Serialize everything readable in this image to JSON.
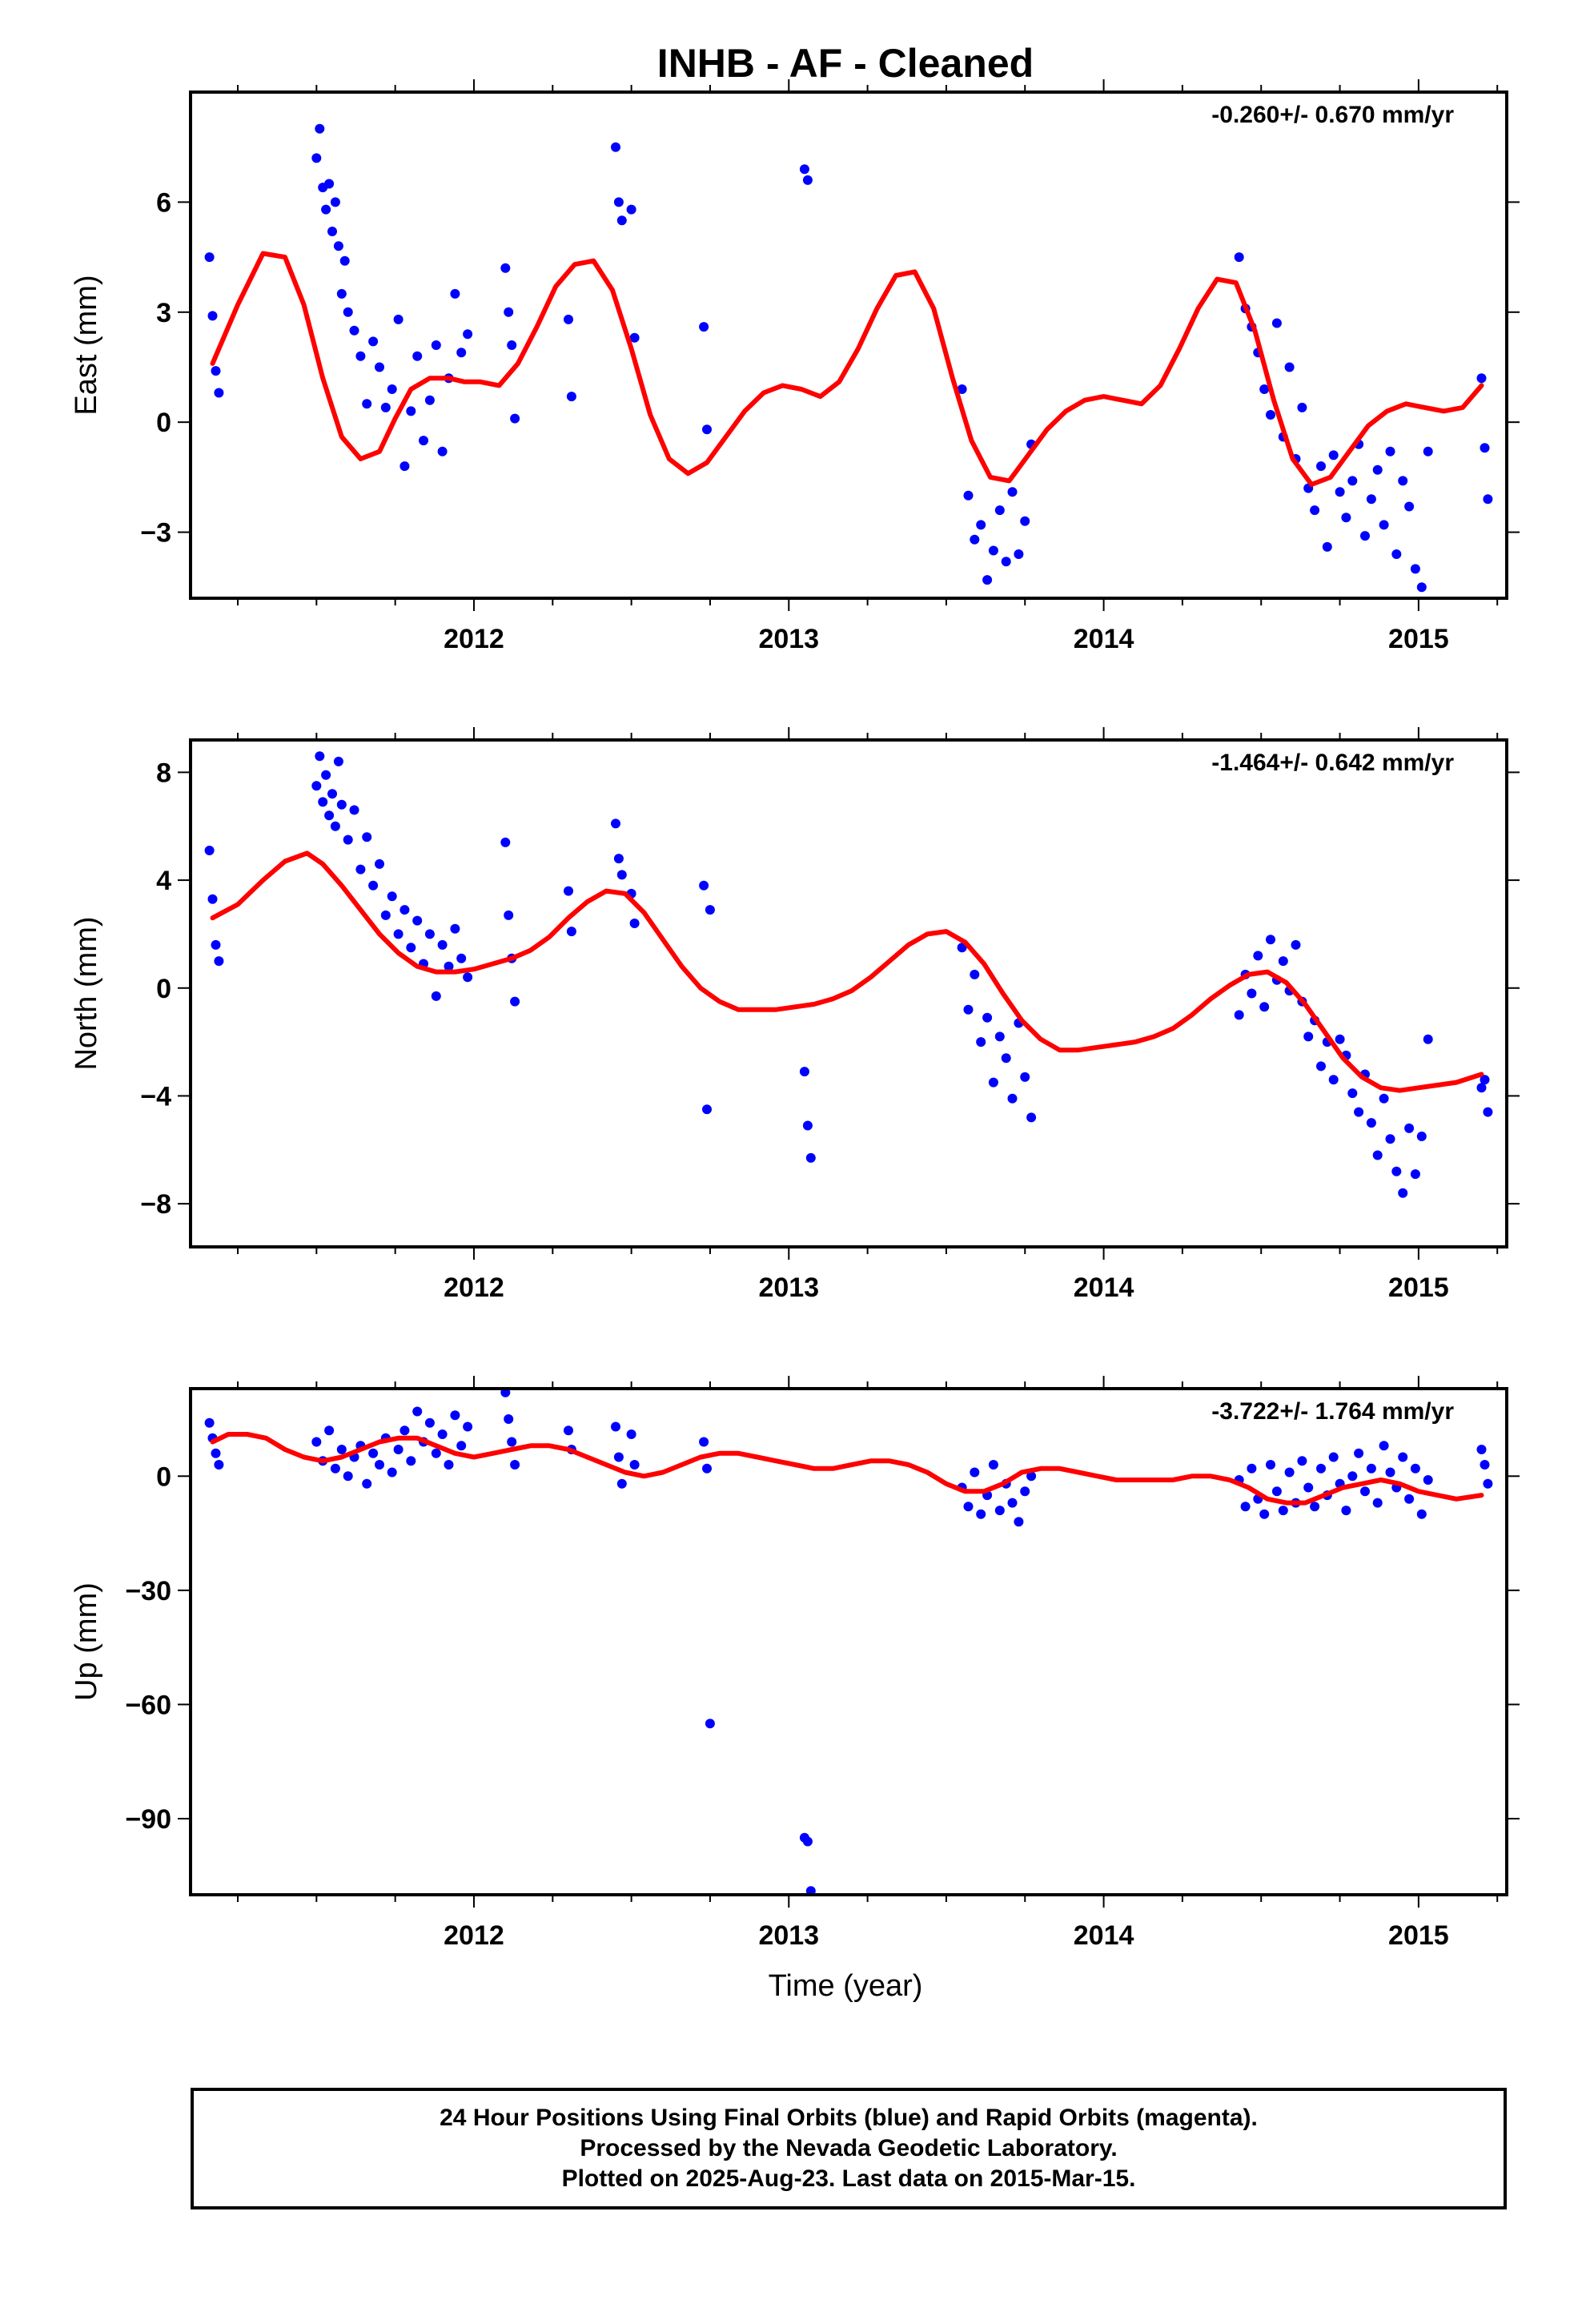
{
  "title": "INHB  - AF - Cleaned",
  "xlabel": "Time (year)",
  "footer": {
    "line1": "24 Hour Positions Using Final Orbits (blue) and Rapid Orbits (magenta).",
    "line2": "Processed by the Nevada Geodetic Laboratory.",
    "line3": "Plotted on 2025-Aug-23. Last data on 2015-Mar-15."
  },
  "colors": {
    "points": "#0000ff",
    "fit": "#ff0000",
    "frame": "#000000"
  },
  "chart_data": [
    {
      "type": "scatter",
      "ylabel": "East (mm)",
      "rate": "-0.260+/- 0.670 mm/yr",
      "xlim": [
        2011.1,
        2015.28
      ],
      "ylim": [
        -4.8,
        9.0
      ],
      "xticks": [
        2012,
        2013,
        2014,
        2015
      ],
      "yticks": [
        -3,
        0,
        3,
        6
      ],
      "ytick_labels": [
        "−3",
        "0",
        "3",
        "6"
      ],
      "points_x": [
        2011.16,
        2011.17,
        2011.18,
        2011.19,
        2011.5,
        2011.51,
        2011.52,
        2011.53,
        2011.54,
        2011.55,
        2011.56,
        2011.57,
        2011.58,
        2011.59,
        2011.6,
        2011.62,
        2011.64,
        2011.66,
        2011.68,
        2011.7,
        2011.72,
        2011.74,
        2011.76,
        2011.78,
        2011.8,
        2011.82,
        2011.84,
        2011.86,
        2011.88,
        2011.9,
        2011.92,
        2011.94,
        2011.96,
        2011.98,
        2012.1,
        2012.11,
        2012.12,
        2012.13,
        2012.3,
        2012.31,
        2012.45,
        2012.46,
        2012.47,
        2012.5,
        2012.51,
        2012.73,
        2012.74,
        2013.05,
        2013.06,
        2013.55,
        2013.57,
        2013.59,
        2013.61,
        2013.63,
        2013.65,
        2013.67,
        2013.69,
        2013.71,
        2013.73,
        2013.75,
        2013.77,
        2014.43,
        2014.45,
        2014.47,
        2014.49,
        2014.51,
        2014.53,
        2014.55,
        2014.57,
        2014.59,
        2014.61,
        2014.63,
        2014.65,
        2014.67,
        2014.69,
        2014.71,
        2014.73,
        2014.75,
        2014.77,
        2014.79,
        2014.81,
        2014.83,
        2014.85,
        2014.87,
        2014.89,
        2014.91,
        2014.93,
        2014.95,
        2014.97,
        2014.99,
        2015.01,
        2015.03,
        2015.2,
        2015.21,
        2015.22
      ],
      "points_y": [
        4.5,
        2.9,
        1.4,
        0.8,
        7.2,
        8.0,
        6.4,
        5.8,
        6.5,
        5.2,
        6.0,
        4.8,
        3.5,
        4.4,
        3.0,
        2.5,
        1.8,
        0.5,
        2.2,
        1.5,
        0.4,
        0.9,
        2.8,
        -1.2,
        0.3,
        1.8,
        -0.5,
        0.6,
        2.1,
        -0.8,
        1.2,
        3.5,
        1.9,
        2.4,
        4.2,
        3.0,
        2.1,
        0.1,
        2.8,
        0.7,
        7.5,
        6.0,
        5.5,
        5.8,
        2.3,
        2.6,
        -0.2,
        6.9,
        6.6,
        0.9,
        -2.0,
        -3.2,
        -2.8,
        -4.3,
        -3.5,
        -2.4,
        -3.8,
        -1.9,
        -3.6,
        -2.7,
        -0.6,
        4.5,
        3.1,
        2.6,
        1.9,
        0.9,
        0.2,
        2.7,
        -0.4,
        1.5,
        -1.0,
        0.4,
        -1.8,
        -2.4,
        -1.2,
        -3.4,
        -0.9,
        -1.9,
        -2.6,
        -1.6,
        -0.6,
        -3.1,
        -2.1,
        -1.3,
        -2.8,
        -0.8,
        -3.6,
        -1.6,
        -2.3,
        -4.0,
        -4.5,
        -0.8,
        1.2,
        -0.7,
        -2.1
      ],
      "fit_x": [
        2011.17,
        2011.25,
        2011.33,
        2011.4,
        2011.46,
        2011.52,
        2011.58,
        2011.64,
        2011.7,
        2011.75,
        2011.8,
        2011.86,
        2011.92,
        2011.97,
        2012.02,
        2012.08,
        2012.14,
        2012.2,
        2012.26,
        2012.32,
        2012.38,
        2012.44,
        2012.5,
        2012.56,
        2012.62,
        2012.68,
        2012.74,
        2012.8,
        2012.86,
        2012.92,
        2012.98,
        2013.04,
        2013.1,
        2013.16,
        2013.22,
        2013.28,
        2013.34,
        2013.4,
        2013.46,
        2013.52,
        2013.58,
        2013.64,
        2013.7,
        2013.76,
        2013.82,
        2013.88,
        2013.94,
        2014.0,
        2014.06,
        2014.12,
        2014.18,
        2014.24,
        2014.3,
        2014.36,
        2014.42,
        2014.48,
        2014.54,
        2014.6,
        2014.66,
        2014.72,
        2014.78,
        2014.84,
        2014.9,
        2014.96,
        2015.02,
        2015.08,
        2015.14,
        2015.2
      ],
      "fit_y": [
        1.6,
        3.2,
        4.6,
        4.5,
        3.2,
        1.2,
        -0.4,
        -1.0,
        -0.8,
        0.1,
        0.9,
        1.2,
        1.2,
        1.1,
        1.1,
        1.0,
        1.6,
        2.6,
        3.7,
        4.3,
        4.4,
        3.6,
        2.0,
        0.2,
        -1.0,
        -1.4,
        -1.1,
        -0.4,
        0.3,
        0.8,
        1.0,
        0.9,
        0.7,
        1.1,
        2.0,
        3.1,
        4.0,
        4.1,
        3.1,
        1.2,
        -0.5,
        -1.5,
        -1.6,
        -0.9,
        -0.2,
        0.3,
        0.6,
        0.7,
        0.6,
        0.5,
        1.0,
        2.0,
        3.1,
        3.9,
        3.8,
        2.5,
        0.6,
        -1.0,
        -1.7,
        -1.5,
        -0.8,
        -0.1,
        0.3,
        0.5,
        0.4,
        0.3,
        0.4,
        1.0
      ]
    },
    {
      "type": "scatter",
      "ylabel": "North (mm)",
      "rate": "-1.464+/- 0.642 mm/yr",
      "xlim": [
        2011.1,
        2015.28
      ],
      "ylim": [
        -9.6,
        9.2
      ],
      "xticks": [
        2012,
        2013,
        2014,
        2015
      ],
      "yticks": [
        -8,
        -4,
        0,
        4,
        8
      ],
      "ytick_labels": [
        "−8",
        "−4",
        "0",
        "4",
        "8"
      ],
      "points_x": [
        2011.16,
        2011.17,
        2011.18,
        2011.19,
        2011.5,
        2011.51,
        2011.52,
        2011.53,
        2011.54,
        2011.55,
        2011.56,
        2011.57,
        2011.58,
        2011.6,
        2011.62,
        2011.64,
        2011.66,
        2011.68,
        2011.7,
        2011.72,
        2011.74,
        2011.76,
        2011.78,
        2011.8,
        2011.82,
        2011.84,
        2011.86,
        2011.88,
        2011.9,
        2011.92,
        2011.94,
        2011.96,
        2011.98,
        2012.1,
        2012.11,
        2012.12,
        2012.13,
        2012.3,
        2012.31,
        2012.45,
        2012.46,
        2012.47,
        2012.5,
        2012.51,
        2012.73,
        2012.74,
        2012.75,
        2013.05,
        2013.06,
        2013.07,
        2013.55,
        2013.57,
        2013.59,
        2013.61,
        2013.63,
        2013.65,
        2013.67,
        2013.69,
        2013.71,
        2013.73,
        2013.75,
        2013.77,
        2014.43,
        2014.45,
        2014.47,
        2014.49,
        2014.51,
        2014.53,
        2014.55,
        2014.57,
        2014.59,
        2014.61,
        2014.63,
        2014.65,
        2014.67,
        2014.69,
        2014.71,
        2014.73,
        2014.75,
        2014.77,
        2014.79,
        2014.81,
        2014.83,
        2014.85,
        2014.87,
        2014.89,
        2014.91,
        2014.93,
        2014.95,
        2014.97,
        2014.99,
        2015.01,
        2015.03,
        2015.2,
        2015.21,
        2015.22
      ],
      "points_y": [
        5.1,
        3.3,
        1.6,
        1.0,
        7.5,
        8.6,
        6.9,
        7.9,
        6.4,
        7.2,
        6.0,
        8.4,
        6.8,
        5.5,
        6.6,
        4.4,
        5.6,
        3.8,
        4.6,
        2.7,
        3.4,
        2.0,
        2.9,
        1.5,
        2.5,
        0.9,
        2.0,
        -0.3,
        1.6,
        0.8,
        2.2,
        1.1,
        0.4,
        5.4,
        2.7,
        1.1,
        -0.5,
        3.6,
        2.1,
        6.1,
        4.8,
        4.2,
        3.5,
        2.4,
        3.8,
        -4.5,
        2.9,
        -3.1,
        -5.1,
        -6.3,
        1.5,
        -0.8,
        0.5,
        -2.0,
        -1.1,
        -3.5,
        -1.8,
        -2.6,
        -4.1,
        -1.3,
        -3.3,
        -4.8,
        -1.0,
        0.5,
        -0.2,
        1.2,
        -0.7,
        1.8,
        0.3,
        1.0,
        -0.1,
        1.6,
        -0.5,
        -1.8,
        -1.2,
        -2.9,
        -2.0,
        -3.4,
        -1.9,
        -2.5,
        -3.9,
        -4.6,
        -3.2,
        -5.0,
        -6.2,
        -4.1,
        -5.6,
        -6.8,
        -7.6,
        -5.2,
        -6.9,
        -5.5,
        -1.9,
        -3.7,
        -3.4,
        -4.6
      ],
      "fit_x": [
        2011.17,
        2011.25,
        2011.33,
        2011.4,
        2011.47,
        2011.52,
        2011.58,
        2011.64,
        2011.7,
        2011.76,
        2011.82,
        2011.88,
        2011.94,
        2012.0,
        2012.06,
        2012.12,
        2012.18,
        2012.24,
        2012.3,
        2012.36,
        2012.42,
        2012.48,
        2012.54,
        2012.6,
        2012.66,
        2012.72,
        2012.78,
        2012.84,
        2012.9,
        2012.96,
        2013.02,
        2013.08,
        2013.14,
        2013.2,
        2013.26,
        2013.32,
        2013.38,
        2013.44,
        2013.5,
        2013.56,
        2013.62,
        2013.68,
        2013.74,
        2013.8,
        2013.86,
        2013.92,
        2013.98,
        2014.04,
        2014.1,
        2014.16,
        2014.22,
        2014.28,
        2014.34,
        2014.4,
        2014.46,
        2014.52,
        2014.58,
        2014.64,
        2014.7,
        2014.76,
        2014.82,
        2014.88,
        2014.94,
        2015.0,
        2015.06,
        2015.12,
        2015.2
      ],
      "fit_y": [
        2.6,
        3.1,
        4.0,
        4.7,
        5.0,
        4.6,
        3.8,
        2.9,
        2.0,
        1.3,
        0.8,
        0.6,
        0.6,
        0.7,
        0.9,
        1.1,
        1.4,
        1.9,
        2.6,
        3.2,
        3.6,
        3.5,
        2.8,
        1.8,
        0.8,
        0.0,
        -0.5,
        -0.8,
        -0.8,
        -0.8,
        -0.7,
        -0.6,
        -0.4,
        -0.1,
        0.4,
        1.0,
        1.6,
        2.0,
        2.1,
        1.7,
        0.9,
        -0.2,
        -1.2,
        -1.9,
        -2.3,
        -2.3,
        -2.2,
        -2.1,
        -2.0,
        -1.8,
        -1.5,
        -1.0,
        -0.4,
        0.1,
        0.5,
        0.6,
        0.2,
        -0.6,
        -1.6,
        -2.6,
        -3.3,
        -3.7,
        -3.8,
        -3.7,
        -3.6,
        -3.5,
        -3.2
      ]
    },
    {
      "type": "scatter",
      "ylabel": "Up (mm)",
      "rate": "-3.722+/- 1.764 mm/yr",
      "xlim": [
        2011.1,
        2015.28
      ],
      "ylim": [
        -110,
        23
      ],
      "xticks": [
        2012,
        2013,
        2014,
        2015
      ],
      "yticks": [
        -90,
        -60,
        -30,
        0
      ],
      "ytick_labels": [
        "−90",
        "−60",
        "−30",
        "0"
      ],
      "points_x": [
        2011.16,
        2011.17,
        2011.18,
        2011.19,
        2011.5,
        2011.52,
        2011.54,
        2011.56,
        2011.58,
        2011.6,
        2011.62,
        2011.64,
        2011.66,
        2011.68,
        2011.7,
        2011.72,
        2011.74,
        2011.76,
        2011.78,
        2011.8,
        2011.82,
        2011.84,
        2011.86,
        2011.88,
        2011.9,
        2011.92,
        2011.94,
        2011.96,
        2011.98,
        2012.1,
        2012.11,
        2012.12,
        2012.13,
        2012.3,
        2012.31,
        2012.45,
        2012.46,
        2012.47,
        2012.5,
        2012.51,
        2012.73,
        2012.74,
        2012.75,
        2013.05,
        2013.06,
        2013.07,
        2013.55,
        2013.57,
        2013.59,
        2013.61,
        2013.63,
        2013.65,
        2013.67,
        2013.69,
        2013.71,
        2013.73,
        2013.75,
        2013.77,
        2014.43,
        2014.45,
        2014.47,
        2014.49,
        2014.51,
        2014.53,
        2014.55,
        2014.57,
        2014.59,
        2014.61,
        2014.63,
        2014.65,
        2014.67,
        2014.69,
        2014.71,
        2014.73,
        2014.75,
        2014.77,
        2014.79,
        2014.81,
        2014.83,
        2014.85,
        2014.87,
        2014.89,
        2014.91,
        2014.93,
        2014.95,
        2014.97,
        2014.99,
        2015.01,
        2015.03,
        2015.2,
        2015.21,
        2015.22
      ],
      "points_y": [
        14,
        10,
        6,
        3,
        9,
        4,
        12,
        2,
        7,
        0,
        5,
        8,
        -2,
        6,
        3,
        10,
        1,
        7,
        12,
        4,
        17,
        9,
        14,
        6,
        11,
        3,
        16,
        8,
        13,
        22,
        15,
        9,
        3,
        12,
        7,
        13,
        5,
        -2,
        11,
        3,
        9,
        2,
        -65,
        -95,
        -96,
        -109,
        -3,
        -8,
        1,
        -10,
        -5,
        3,
        -9,
        -2,
        -7,
        -12,
        -4,
        0,
        -1,
        -8,
        2,
        -6,
        -10,
        3,
        -4,
        -9,
        1,
        -7,
        4,
        -3,
        -8,
        2,
        -5,
        5,
        -2,
        -9,
        0,
        6,
        -4,
        2,
        -7,
        8,
        1,
        -3,
        5,
        -6,
        2,
        -10,
        -1,
        7,
        3,
        -2
      ],
      "fit_x": [
        2011.17,
        2011.22,
        2011.28,
        2011.34,
        2011.4,
        2011.46,
        2011.52,
        2011.58,
        2011.64,
        2011.7,
        2011.76,
        2011.82,
        2011.88,
        2011.94,
        2012.0,
        2012.06,
        2012.12,
        2012.18,
        2012.24,
        2012.3,
        2012.36,
        2012.42,
        2012.48,
        2012.54,
        2012.6,
        2012.66,
        2012.72,
        2012.78,
        2012.84,
        2012.9,
        2012.96,
        2013.02,
        2013.08,
        2013.14,
        2013.2,
        2013.26,
        2013.32,
        2013.38,
        2013.44,
        2013.5,
        2013.56,
        2013.62,
        2013.68,
        2013.74,
        2013.8,
        2013.86,
        2013.92,
        2013.98,
        2014.04,
        2014.1,
        2014.16,
        2014.22,
        2014.28,
        2014.34,
        2014.4,
        2014.46,
        2014.52,
        2014.58,
        2014.64,
        2014.7,
        2014.76,
        2014.82,
        2014.88,
        2014.94,
        2015.0,
        2015.06,
        2015.12,
        2015.2
      ],
      "fit_y": [
        9,
        11,
        11,
        10,
        7,
        5,
        4,
        5,
        7,
        9,
        10,
        10,
        8,
        6,
        5,
        6,
        7,
        8,
        8,
        7,
        5,
        3,
        1,
        0,
        1,
        3,
        5,
        6,
        6,
        5,
        4,
        3,
        2,
        2,
        3,
        4,
        4,
        3,
        1,
        -2,
        -4,
        -4,
        -2,
        1,
        2,
        2,
        1,
        0,
        -1,
        -1,
        -1,
        -1,
        0,
        0,
        -1,
        -3,
        -6,
        -7,
        -7,
        -5,
        -3,
        -2,
        -1,
        -2,
        -4,
        -5,
        -6,
        -5
      ]
    }
  ]
}
